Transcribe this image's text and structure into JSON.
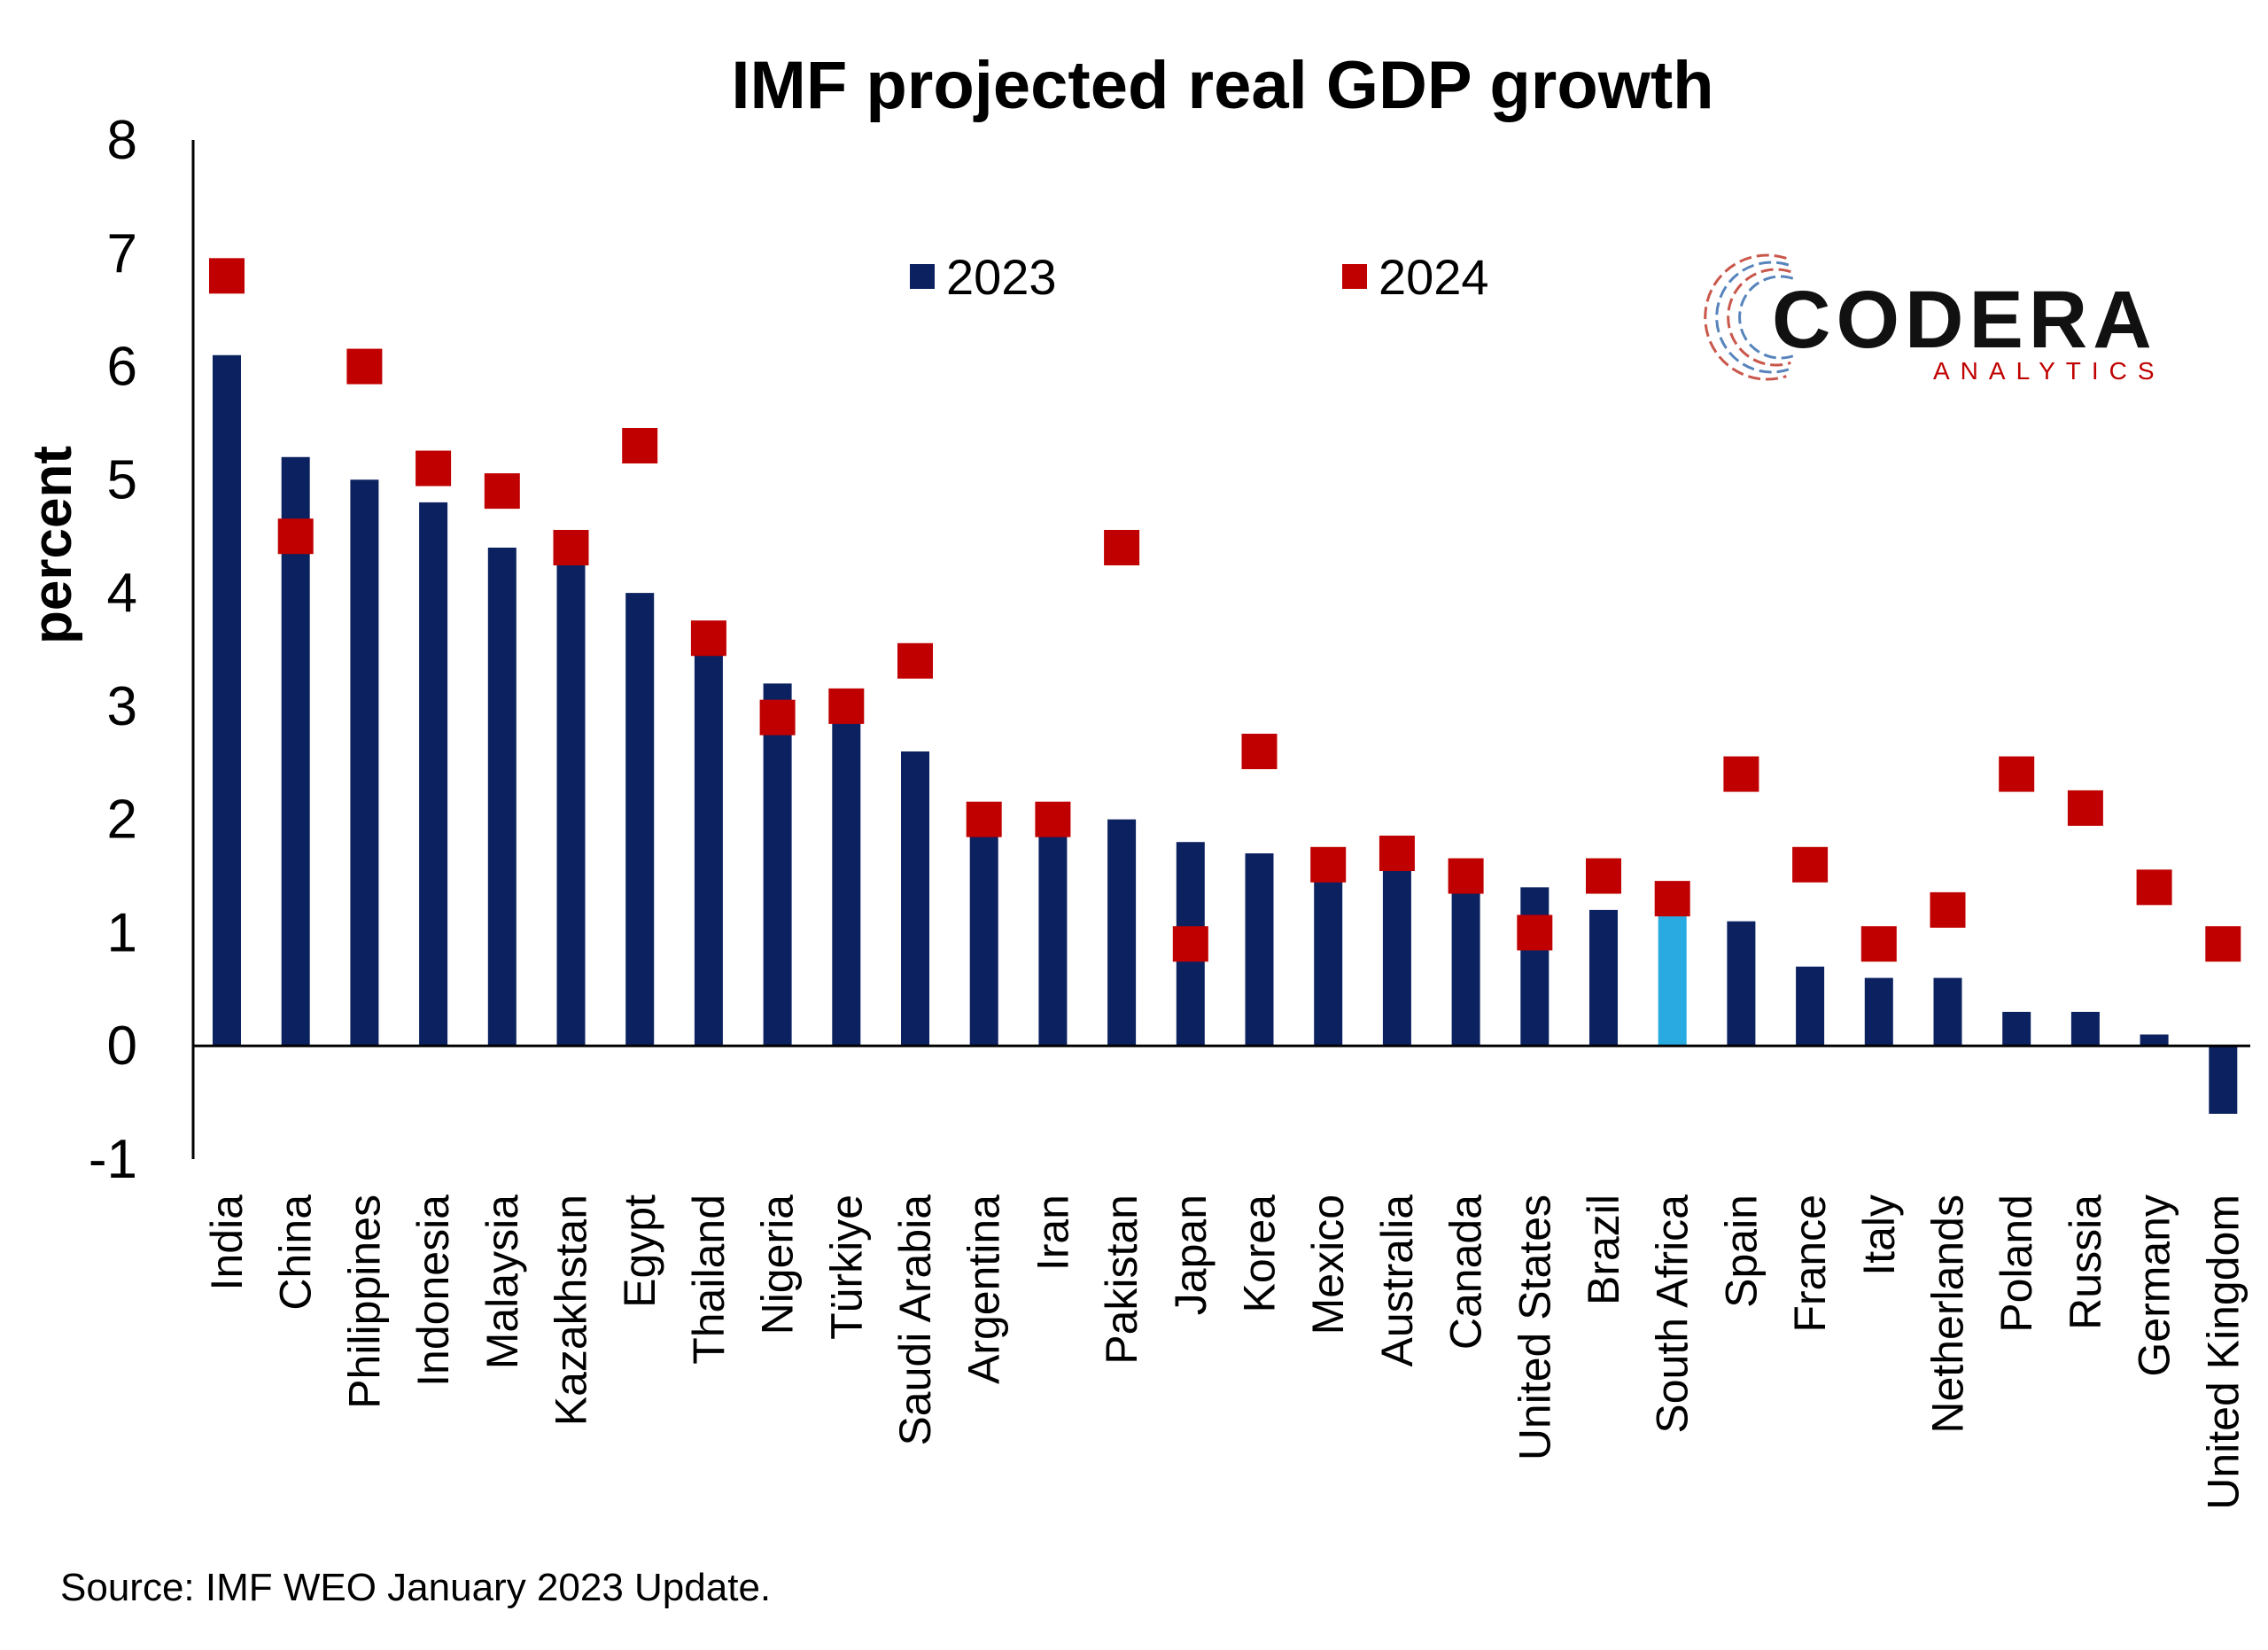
{
  "chart_data": {
    "type": "bar",
    "title": "IMF projected real GDP growth",
    "ylabel": "percent",
    "xlabel": "",
    "ylim": [
      -1,
      8
    ],
    "yticks": [
      "8",
      "7",
      "6",
      "5",
      "4",
      "3",
      "2",
      "1",
      "0",
      "-1"
    ],
    "grid": false,
    "legend_position": "top-center",
    "categories": [
      "India",
      "China",
      "Philippines",
      "Indonesia",
      "Malaysia",
      "Kazakhstan",
      "Egypt",
      "Thailand",
      "Nigeria",
      "Türkiye",
      "Saudi Arabia",
      "Argentina",
      "Iran",
      "Pakistan",
      "Japan",
      "Korea",
      "Mexico",
      "Australia",
      "Canada",
      "United States",
      "Brazil",
      "South Africa",
      "Spain",
      "France",
      "Italy",
      "Netherlands",
      "Poland",
      "Russia",
      "Germany",
      "United Kingdom"
    ],
    "series": [
      {
        "name": "2023",
        "type": "bar",
        "color": "#0b2160",
        "highlight": {
          "category": "South Africa",
          "color": "#29abe2"
        },
        "values": [
          6.1,
          5.2,
          5.0,
          4.8,
          4.4,
          4.3,
          4.0,
          3.5,
          3.2,
          2.9,
          2.6,
          1.9,
          1.9,
          2.0,
          1.8,
          1.7,
          1.5,
          1.6,
          1.4,
          1.4,
          1.2,
          1.2,
          1.1,
          0.7,
          0.6,
          0.6,
          0.3,
          0.3,
          0.1,
          -0.6
        ]
      },
      {
        "name": "2024",
        "type": "marker",
        "color": "#c00000",
        "values": [
          6.8,
          4.5,
          6.0,
          5.1,
          4.9,
          4.4,
          5.3,
          3.6,
          2.9,
          3.0,
          3.4,
          2.0,
          2.0,
          4.4,
          0.9,
          2.6,
          1.6,
          1.7,
          1.5,
          1.0,
          1.5,
          1.3,
          2.4,
          1.6,
          0.9,
          1.2,
          2.4,
          2.1,
          1.4,
          0.9
        ]
      }
    ],
    "source": "Source: IMF WEO January 2023 Update."
  },
  "logo": {
    "name": "CODERA",
    "tagline": "ANALYTICS",
    "colors": {
      "text": "#111111",
      "tagline": "#c00000",
      "ring_red": "#c0392b",
      "ring_blue": "#3a6fb0"
    }
  }
}
